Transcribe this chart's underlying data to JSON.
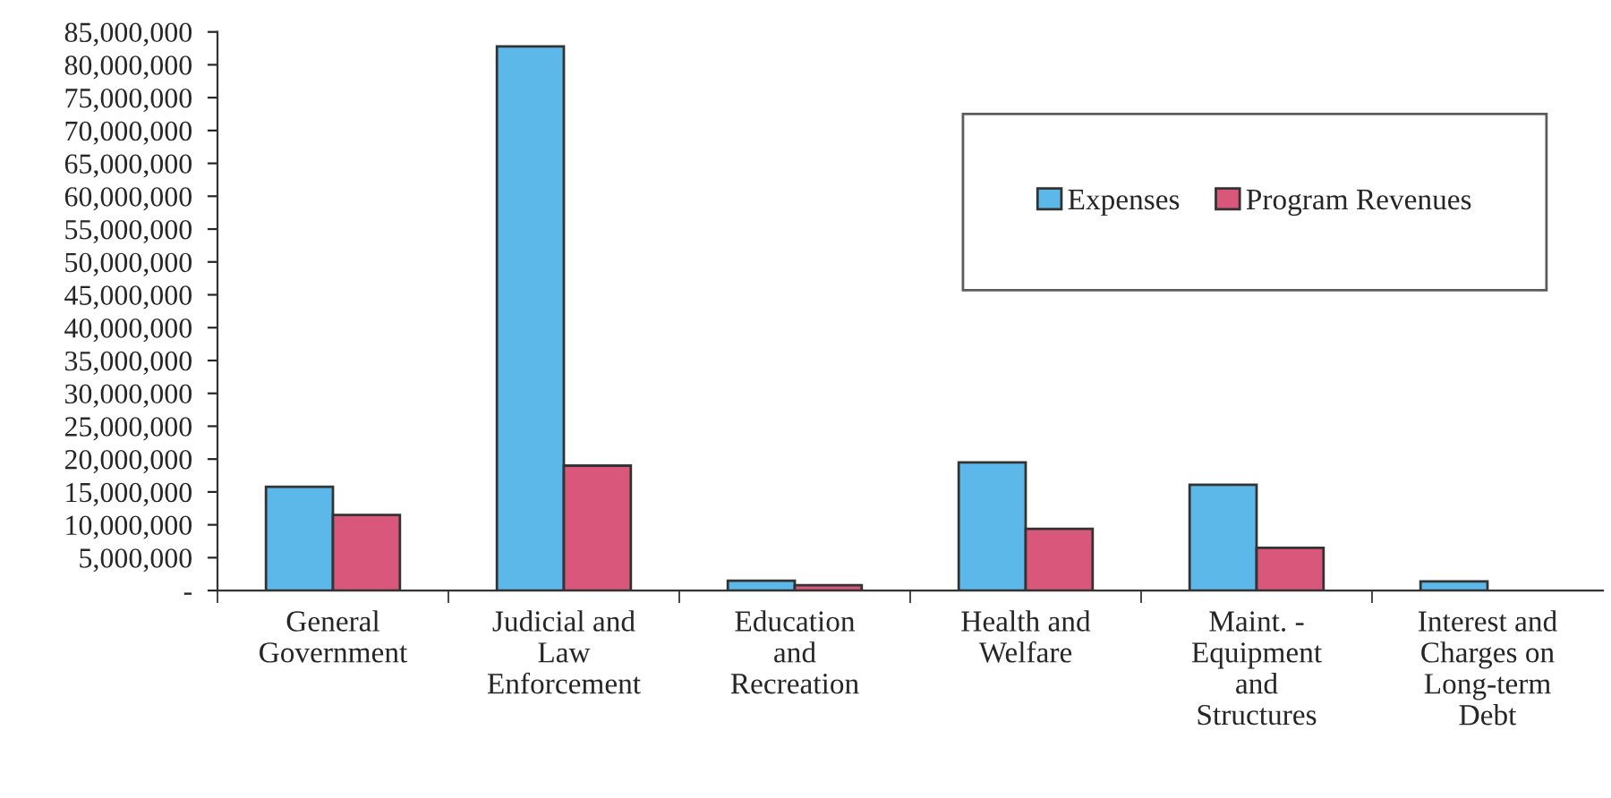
{
  "chart_data": {
    "type": "bar",
    "categories": [
      "General Government",
      "Judicial and Law Enforcement",
      "Education and Recreation",
      "Health and Welfare",
      "Maint. - Equipment and Structures",
      "Interest and Charges on Long-term Debt"
    ],
    "series": [
      {
        "name": "Expenses",
        "color": "#5bb8e8",
        "values": [
          15800000,
          82800000,
          1500000,
          19500000,
          16100000,
          1400000
        ]
      },
      {
        "name": "Program Revenues",
        "color": "#d9577a",
        "values": [
          11500000,
          19000000,
          800000,
          9400000,
          6500000,
          null
        ]
      }
    ],
    "ylim": [
      0,
      85000000
    ],
    "yticks": [
      {
        "value": 0,
        "label": "-"
      },
      {
        "value": 5000000,
        "label": "5,000,000"
      },
      {
        "value": 10000000,
        "label": "10,000,000"
      },
      {
        "value": 15000000,
        "label": "15,000,000"
      },
      {
        "value": 20000000,
        "label": "20,000,000"
      },
      {
        "value": 25000000,
        "label": "25,000,000"
      },
      {
        "value": 30000000,
        "label": "30,000,000"
      },
      {
        "value": 35000000,
        "label": "35,000,000"
      },
      {
        "value": 40000000,
        "label": "40,000,000"
      },
      {
        "value": 45000000,
        "label": "45,000,000"
      },
      {
        "value": 50000000,
        "label": "50,000,000"
      },
      {
        "value": 55000000,
        "label": "55,000,000"
      },
      {
        "value": 60000000,
        "label": "60,000,000"
      },
      {
        "value": 65000000,
        "label": "65,000,000"
      },
      {
        "value": 70000000,
        "label": "70,000,000"
      },
      {
        "value": 75000000,
        "label": "75,000,000"
      },
      {
        "value": 80000000,
        "label": "80,000,000"
      },
      {
        "value": 85000000,
        "label": "85,000,000"
      }
    ],
    "grid": false,
    "legend": "top right"
  }
}
